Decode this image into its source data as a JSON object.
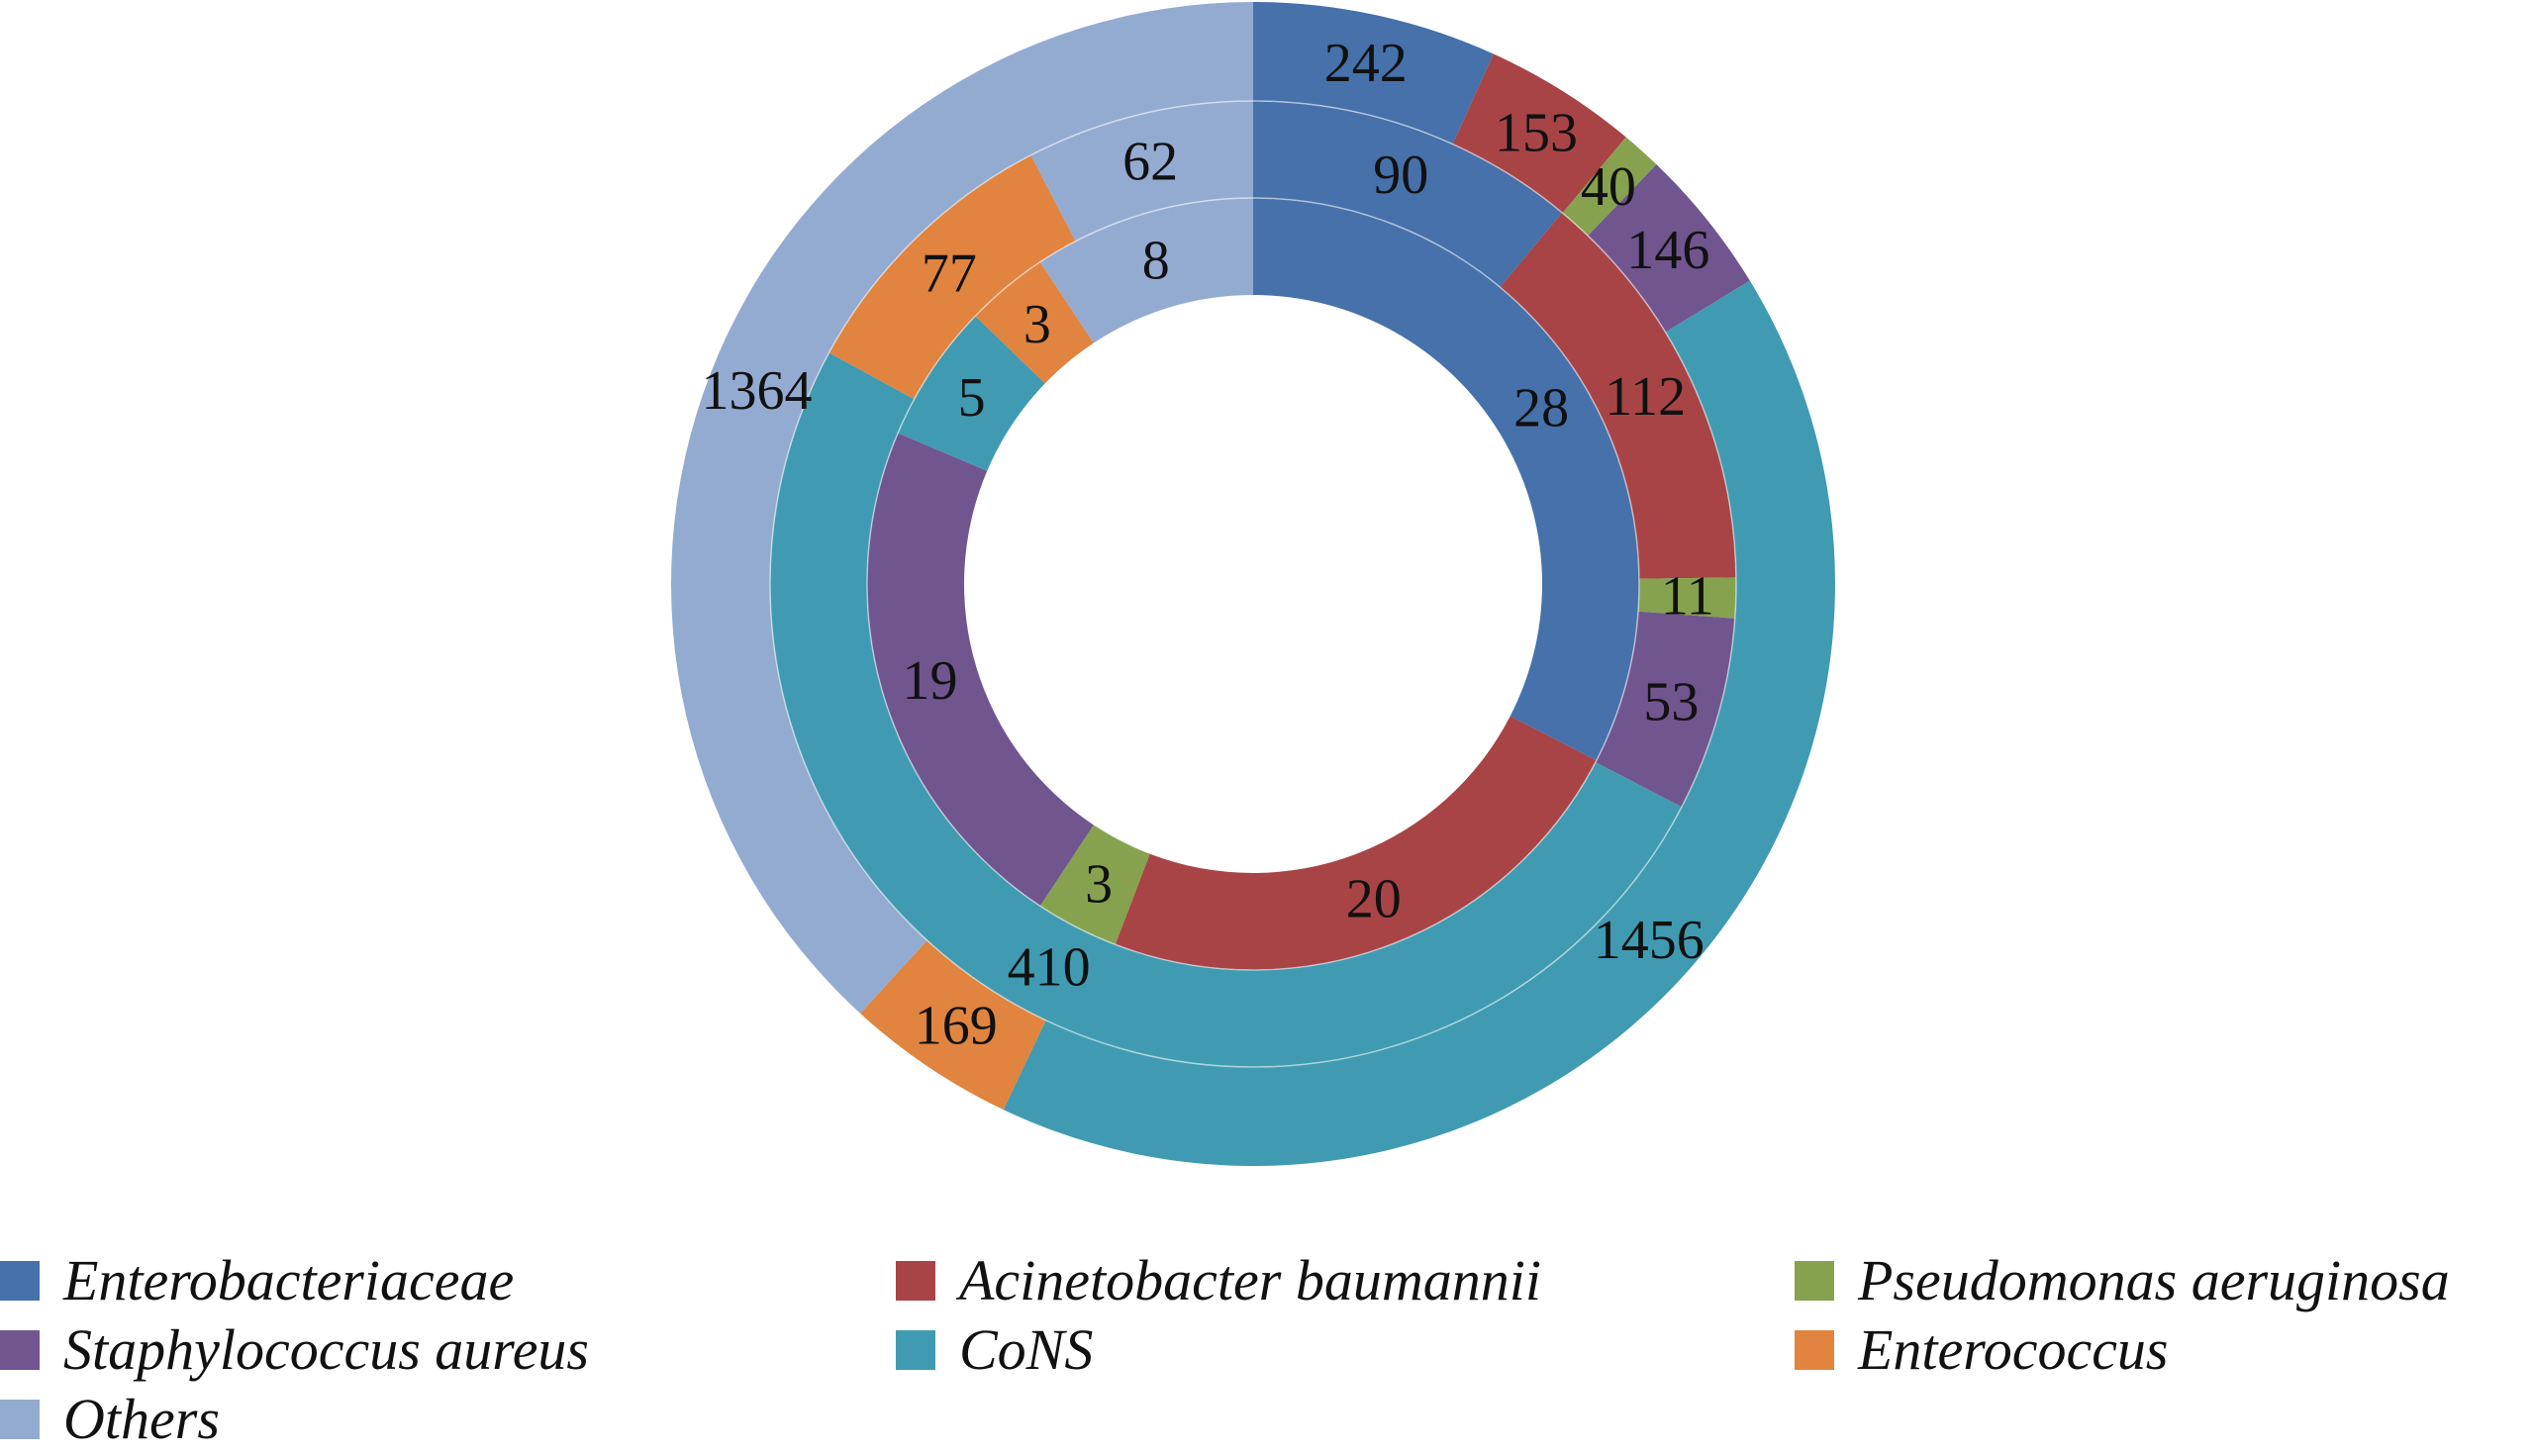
{
  "chart_data": {
    "type": "pie",
    "subtype": "multi-ring donut",
    "categories": [
      "Enterobacteriaceae",
      "Acinetobacter baumannii",
      "Pseudomonas aeruginosa",
      "Staphylococcus aureus",
      "CoNS",
      "Enterococcus",
      "Others"
    ],
    "colors": [
      "#4671aa",
      "#a84446",
      "#86a24e",
      "#71558f",
      "#409bb2",
      "#e0843f",
      "#94abd1"
    ],
    "series": [
      {
        "ring": "inner",
        "values": [
          28,
          20,
          3,
          19,
          5,
          3,
          8
        ]
      },
      {
        "ring": "middle",
        "values": [
          90,
          112,
          11,
          53,
          410,
          77,
          62
        ]
      },
      {
        "ring": "outer",
        "values": [
          242,
          153,
          40,
          146,
          1456,
          169,
          1364
        ]
      }
    ],
    "legend_position": "bottom",
    "title": "",
    "xlabel": "",
    "ylabel": ""
  }
}
